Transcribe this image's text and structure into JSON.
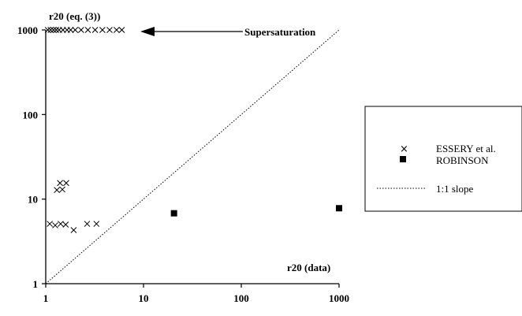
{
  "chart_data": {
    "type": "scatter",
    "xscale": "log",
    "yscale": "log",
    "xlim": [
      1,
      1000
    ],
    "ylim": [
      1,
      1000
    ],
    "xticks": [
      "1",
      "10",
      "100",
      "1000"
    ],
    "yticks": [
      "1",
      "10",
      "100",
      "1000"
    ],
    "xlabel": "r20 (data)",
    "ylabel": "r20 (eq. (3))",
    "grid": false,
    "legend_position": "right",
    "annotation": "Supersaturation",
    "series": [
      {
        "name": "ESSERY et al.",
        "marker": "x",
        "points": [
          {
            "x": 1.05,
            "y": 1000
          },
          {
            "x": 1.12,
            "y": 1000
          },
          {
            "x": 1.2,
            "y": 1000
          },
          {
            "x": 1.28,
            "y": 1000
          },
          {
            "x": 1.37,
            "y": 1000
          },
          {
            "x": 1.5,
            "y": 1000
          },
          {
            "x": 1.65,
            "y": 1000
          },
          {
            "x": 1.8,
            "y": 1000
          },
          {
            "x": 2.0,
            "y": 1000
          },
          {
            "x": 2.3,
            "y": 1000
          },
          {
            "x": 2.7,
            "y": 1000
          },
          {
            "x": 3.2,
            "y": 1000
          },
          {
            "x": 3.8,
            "y": 1000
          },
          {
            "x": 4.5,
            "y": 1000
          },
          {
            "x": 5.3,
            "y": 1000
          },
          {
            "x": 6.0,
            "y": 1000
          },
          {
            "x": 1.4,
            "y": 15.5
          },
          {
            "x": 1.62,
            "y": 15.5
          },
          {
            "x": 1.3,
            "y": 12.8
          },
          {
            "x": 1.48,
            "y": 13.0
          },
          {
            "x": 1.1,
            "y": 5.1
          },
          {
            "x": 1.25,
            "y": 4.9
          },
          {
            "x": 1.42,
            "y": 5.1
          },
          {
            "x": 1.6,
            "y": 5.0
          },
          {
            "x": 1.93,
            "y": 4.3
          },
          {
            "x": 2.65,
            "y": 5.1
          },
          {
            "x": 3.3,
            "y": 5.1
          }
        ]
      },
      {
        "name": "ROBINSON",
        "marker": "square",
        "points": [
          {
            "x": 20.5,
            "y": 6.8
          },
          {
            "x": 1000,
            "y": 7.8
          }
        ]
      },
      {
        "name": "1:1 slope",
        "line": "dotted",
        "points": [
          {
            "x": 1,
            "y": 1
          },
          {
            "x": 1000,
            "y": 1000
          }
        ]
      }
    ]
  },
  "colors": {
    "ink": "#000000",
    "background": "#ffffff"
  }
}
